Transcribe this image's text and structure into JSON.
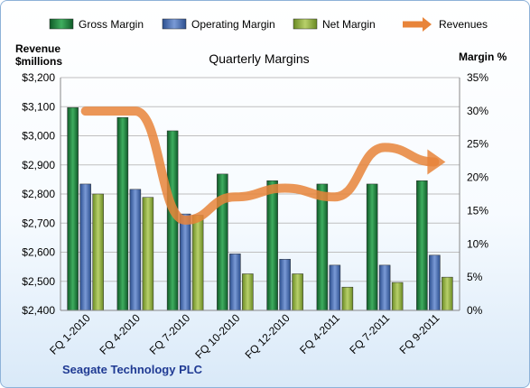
{
  "chart_data": {
    "type": "bar",
    "title": "Quarterly Margins",
    "left_axis_label_line1": "Revenue",
    "left_axis_label_line2": "$millions",
    "right_axis_label": "Margin %",
    "company": "Seagate Technology PLC",
    "categories": [
      "FQ 1-2010",
      "FQ 4-2010",
      "FQ 7-2010",
      "FQ 10-2010",
      "FQ 12-2010",
      "FQ 4-2011",
      "FQ 7-2011",
      "FQ 9-2011"
    ],
    "series": [
      {
        "name": "Gross Margin",
        "axis": "right",
        "color": "#1a7a3a",
        "values": [
          30.5,
          29.0,
          27.0,
          20.5,
          19.5,
          19.0,
          19.0,
          19.5
        ]
      },
      {
        "name": "Operating Margin",
        "axis": "right",
        "color": "#4a6fb0",
        "values": [
          19.0,
          18.2,
          14.5,
          8.5,
          7.7,
          6.8,
          6.8,
          8.3
        ]
      },
      {
        "name": "Net Margin",
        "axis": "right",
        "color": "#8fae3c",
        "values": [
          17.5,
          17.0,
          14.3,
          5.5,
          5.5,
          3.5,
          4.2,
          5.0
        ]
      },
      {
        "name": "Revenues",
        "axis": "left",
        "type": "line",
        "color": "#e8843a",
        "values": [
          3085,
          3085,
          2710,
          2790,
          2820,
          2790,
          2960,
          2910
        ]
      }
    ],
    "left_ticks": [
      "$2,400",
      "$2,500",
      "$2,600",
      "$2,700",
      "$2,800",
      "$2,900",
      "$3,000",
      "$3,100",
      "$3,200"
    ],
    "right_ticks": [
      "0%",
      "5%",
      "10%",
      "15%",
      "20%",
      "25%",
      "30%",
      "35%"
    ],
    "left_range": [
      2400,
      3200
    ],
    "right_range": [
      0,
      35
    ],
    "grid": true,
    "legend": "top"
  }
}
